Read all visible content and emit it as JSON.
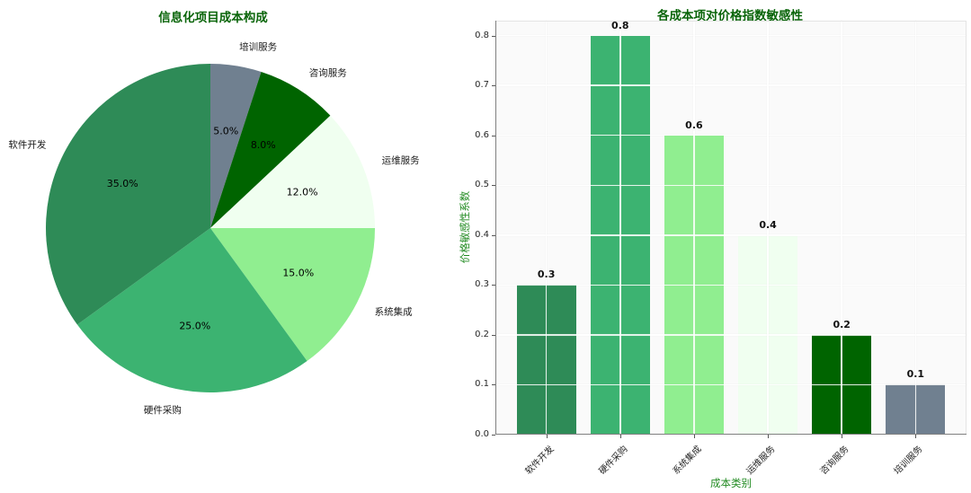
{
  "chart_data": [
    {
      "type": "pie",
      "title": "信息化项目成本构成",
      "title_color": "#0a650a",
      "start_angle_deg": 90,
      "direction": "clockwise",
      "label_color": "#1a1a1a",
      "categories": [
        "培训服务",
        "咨询服务",
        "运维服务",
        "系统集成",
        "硬件采购",
        "软件开发"
      ],
      "values": [
        5.0,
        8.0,
        12.0,
        15.0,
        25.0,
        35.0
      ],
      "pct_labels": [
        "5.0%",
        "8.0%",
        "12.0%",
        "15.0%",
        "25.0%",
        "35.0%"
      ],
      "colors": [
        "#708090",
        "#006400",
        "#F0FFF0",
        "#90EE90",
        "#3CB371",
        "#2E8B57"
      ]
    },
    {
      "type": "bar",
      "title": "各成本项对价格指数敏感性",
      "title_color": "#0a650a",
      "xlabel": "成本类别",
      "ylabel": "价格敏感性系数",
      "axis_label_color": "#228B22",
      "categories": [
        "软件开发",
        "硬件采购",
        "系统集成",
        "运维服务",
        "咨询服务",
        "培训服务"
      ],
      "values": [
        0.3,
        0.8,
        0.6,
        0.4,
        0.2,
        0.1
      ],
      "value_labels": [
        "0.3",
        "0.8",
        "0.6",
        "0.4",
        "0.2",
        "0.1"
      ],
      "colors": [
        "#2E8B57",
        "#3CB371",
        "#90EE90",
        "#F0FFF0",
        "#006400",
        "#708090"
      ],
      "ylim": [
        0,
        0.83
      ],
      "yticks": [
        "0.0",
        "0.1",
        "0.2",
        "0.3",
        "0.4",
        "0.5",
        "0.6",
        "0.7",
        "0.8"
      ],
      "grid": true,
      "legend": "none"
    }
  ]
}
